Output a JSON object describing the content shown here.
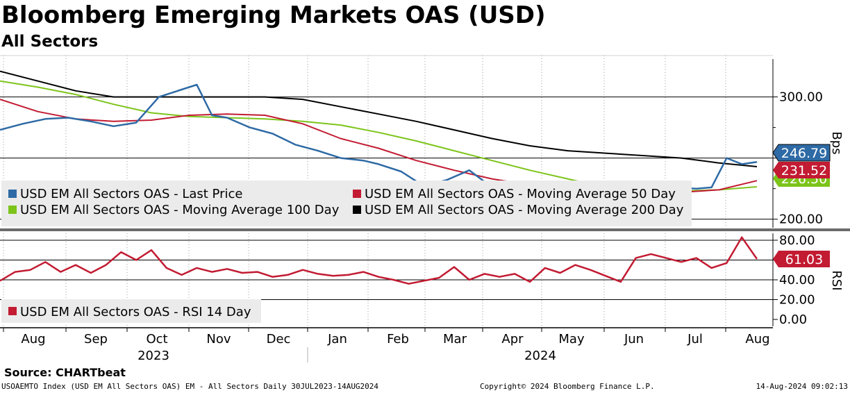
{
  "header": {
    "title": "Bloomberg Emerging Markets OAS (USD)",
    "subtitle": "All Sectors"
  },
  "footer": {
    "source": "Source:  CHARTbeat",
    "ticker": "USOAEMTO Index (USD EM All Sectors OAS) EM - All Sectors  Daily 30JUL2023-14AUG2024",
    "copyright": "Copyright© 2024 Bloomberg Finance L.P.",
    "timestamp": "14-Aug-2024 09:02:13"
  },
  "colors": {
    "last_price": "#2e6aa5",
    "ma50": "#c21b32",
    "ma100": "#7dc41a",
    "ma200": "#000000",
    "rsi": "#c21b32"
  },
  "chart_data": [
    {
      "type": "line",
      "name": "price-panel",
      "title": "Bloomberg Emerging Markets OAS (USD)",
      "ylabel": "Bps",
      "ylim": [
        193,
        331
      ],
      "yticks": [
        200,
        250,
        300
      ],
      "ytick_labels": [
        "200.00",
        "",
        "300.00"
      ],
      "x_labels": [
        "Aug",
        "Sep",
        "Oct",
        "Nov",
        "Dec",
        "Jan",
        "Feb",
        "Mar",
        "Apr",
        "May",
        "Jun",
        "Jul",
        "Aug"
      ],
      "x_year_labels": [
        "2023",
        "2024"
      ],
      "legend": [
        "USD EM All Sectors OAS - Last Price",
        "USD EM All Sectors OAS - Moving Average 50 Day",
        "USD EM All Sectors OAS - Moving Average 100 Day",
        "USD EM All Sectors OAS - Moving Average 200 Day"
      ],
      "last_value_labels": [
        {
          "text": "246.79",
          "value": 246.79,
          "series": "last_price"
        },
        {
          "text": "231.52",
          "value": 231.52,
          "series": "ma50"
        },
        {
          "text": "226.50",
          "value": 226.5,
          "series": "ma100"
        }
      ],
      "series": [
        {
          "name": "USD EM All Sectors OAS - Last Price",
          "key": "last_price",
          "x": [
            0,
            0.03,
            0.06,
            0.09,
            0.12,
            0.15,
            0.18,
            0.21,
            0.24,
            0.26,
            0.28,
            0.3,
            0.33,
            0.36,
            0.39,
            0.42,
            0.45,
            0.48,
            0.5,
            0.53,
            0.56,
            0.59,
            0.62,
            0.65,
            0.68,
            0.71,
            0.74,
            0.77,
            0.8,
            0.83,
            0.86,
            0.89,
            0.92,
            0.94,
            0.96,
            0.98,
            1.0
          ],
          "values": [
            273,
            278,
            282,
            283,
            280,
            276,
            279,
            300,
            306,
            310,
            285,
            283,
            275,
            270,
            261,
            256,
            250,
            248,
            245,
            239,
            227,
            232,
            240,
            226,
            218,
            222,
            220,
            219,
            213,
            212,
            227,
            226,
            225,
            226,
            250,
            245,
            246.79
          ]
        },
        {
          "name": "USD EM All Sectors OAS - Moving Average 50 Day",
          "key": "ma50",
          "x": [
            0,
            0.05,
            0.1,
            0.15,
            0.2,
            0.25,
            0.3,
            0.35,
            0.4,
            0.45,
            0.5,
            0.55,
            0.6,
            0.65,
            0.7,
            0.75,
            0.8,
            0.85,
            0.9,
            0.95,
            1.0
          ],
          "values": [
            298,
            288,
            282,
            280,
            281,
            285,
            286,
            285,
            278,
            266,
            258,
            248,
            240,
            233,
            228,
            226,
            222,
            222,
            222,
            224,
            231.52
          ]
        },
        {
          "name": "USD EM All Sectors OAS - Moving Average 100 Day",
          "key": "ma100",
          "x": [
            0,
            0.05,
            0.1,
            0.15,
            0.2,
            0.25,
            0.3,
            0.35,
            0.4,
            0.45,
            0.5,
            0.55,
            0.6,
            0.65,
            0.7,
            0.75,
            0.8,
            0.85,
            0.9,
            0.95,
            1.0
          ],
          "values": [
            313,
            308,
            302,
            294,
            287,
            284,
            283,
            282,
            280,
            277,
            271,
            264,
            256,
            248,
            240,
            233,
            226,
            224,
            223,
            224,
            226.5
          ]
        },
        {
          "name": "USD EM All Sectors OAS - Moving Average 200 Day",
          "key": "ma200",
          "x": [
            0,
            0.05,
            0.1,
            0.15,
            0.2,
            0.25,
            0.3,
            0.35,
            0.4,
            0.45,
            0.5,
            0.55,
            0.6,
            0.65,
            0.7,
            0.75,
            0.8,
            0.85,
            0.9,
            0.95,
            1.0
          ],
          "values": [
            321,
            313,
            305,
            300,
            300,
            300,
            300,
            300,
            298,
            292,
            286,
            280,
            273,
            266,
            260,
            256,
            254,
            252,
            250,
            246,
            243
          ]
        }
      ]
    },
    {
      "type": "line",
      "name": "rsi-panel",
      "ylabel": "RSI",
      "ylim": [
        -7,
        87
      ],
      "yticks": [
        0,
        20,
        40,
        60,
        80
      ],
      "ytick_labels": [
        "0.00",
        "20.00",
        "40.00",
        "60.00",
        "80.00"
      ],
      "legend": [
        "USD EM All Sectors OAS - RSI 14 Day"
      ],
      "last_value_labels": [
        {
          "text": "61.03",
          "value": 61.03,
          "series": "rsi"
        }
      ],
      "series": [
        {
          "name": "USD EM All Sectors OAS - RSI 14 Day",
          "key": "rsi",
          "x": [
            0,
            0.02,
            0.04,
            0.06,
            0.08,
            0.1,
            0.12,
            0.14,
            0.16,
            0.18,
            0.2,
            0.22,
            0.24,
            0.26,
            0.28,
            0.3,
            0.32,
            0.34,
            0.36,
            0.38,
            0.4,
            0.42,
            0.44,
            0.46,
            0.48,
            0.5,
            0.52,
            0.54,
            0.56,
            0.58,
            0.6,
            0.62,
            0.64,
            0.66,
            0.68,
            0.7,
            0.72,
            0.74,
            0.76,
            0.78,
            0.8,
            0.82,
            0.84,
            0.86,
            0.88,
            0.9,
            0.92,
            0.94,
            0.96,
            0.98,
            1.0
          ],
          "values": [
            39,
            48,
            50,
            58,
            48,
            55,
            47,
            55,
            68,
            60,
            70,
            52,
            45,
            52,
            48,
            51,
            47,
            48,
            43,
            45,
            50,
            46,
            44,
            45,
            48,
            43,
            40,
            36,
            39,
            42,
            53,
            40,
            46,
            43,
            46,
            38,
            52,
            47,
            55,
            50,
            44,
            38,
            62,
            66,
            62,
            58,
            62,
            52,
            57,
            83,
            61.03
          ]
        }
      ]
    }
  ]
}
